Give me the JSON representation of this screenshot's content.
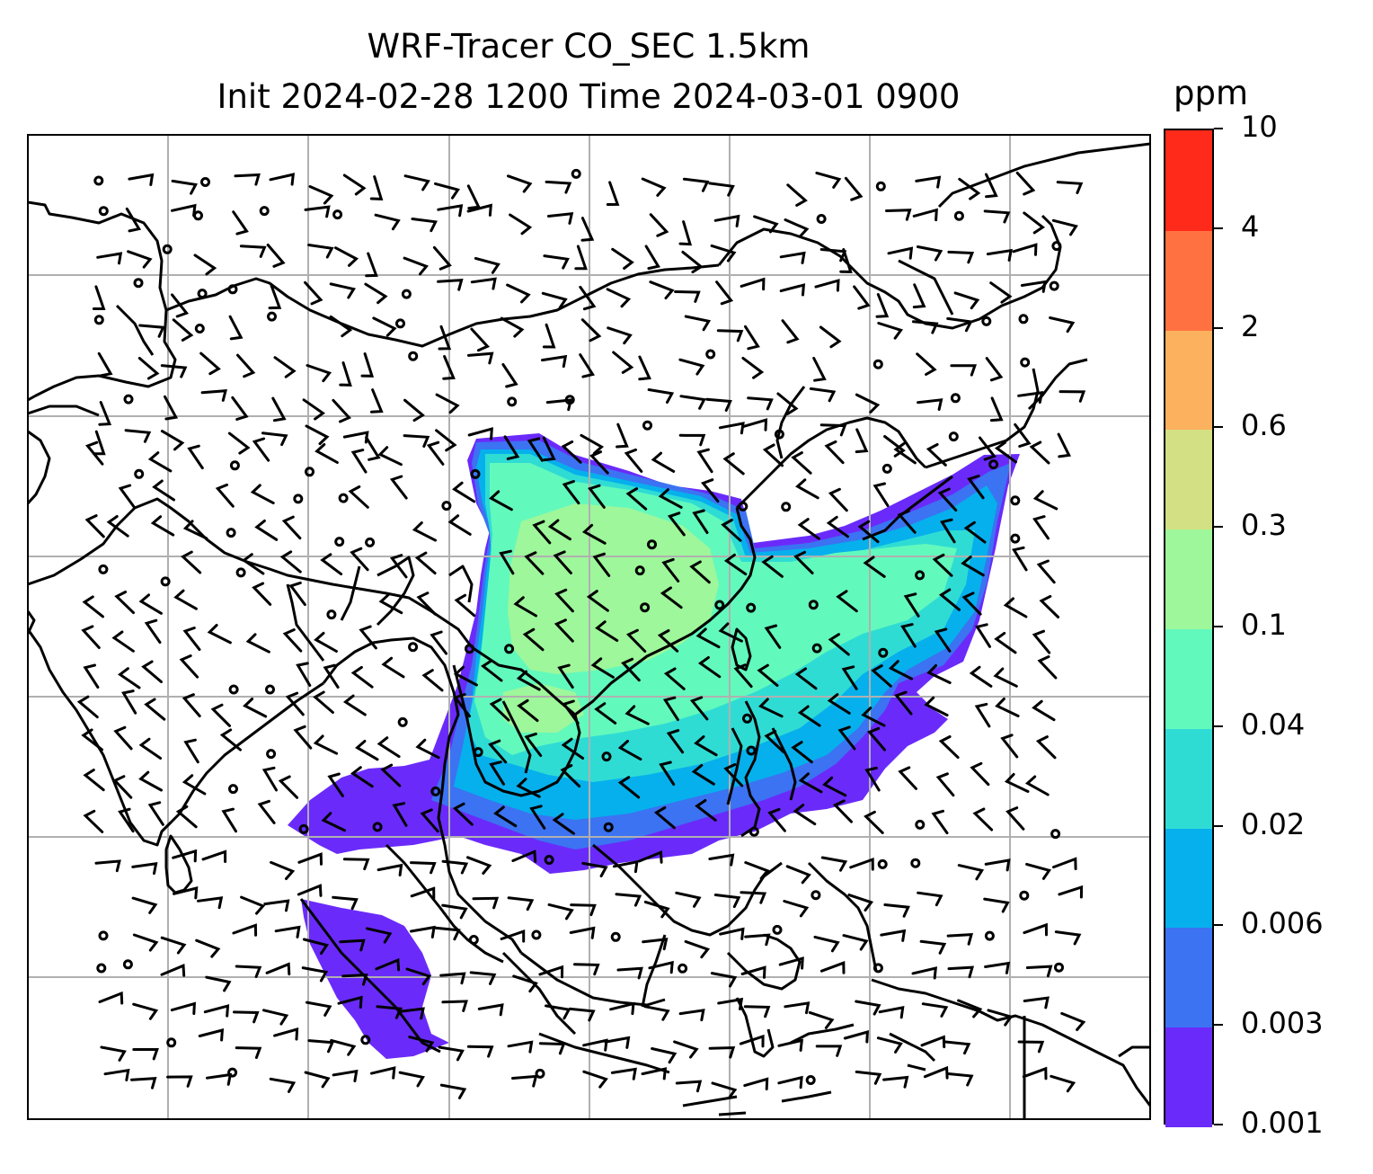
{
  "title": {
    "line1": "WRF-Tracer CO_SEC 1.5km",
    "line2": "Init 2024-02-28 1200 Time 2024-03-01 0900"
  },
  "colorbar": {
    "unit": "ppm",
    "levels": [
      "0.001",
      "0.003",
      "0.006",
      "0.02",
      "0.04",
      "0.1",
      "0.3",
      "0.6",
      "2",
      "4",
      "10"
    ],
    "colors": [
      "#6a2bfa",
      "#3b73f2",
      "#06b0ec",
      "#2fdcd4",
      "#62f9bc",
      "#9ef79a",
      "#d3e083",
      "#fbb15e",
      "#ff7140",
      "#ff2a1a"
    ]
  },
  "map": {
    "grid": "on",
    "coastline_color": "#000000",
    "gridline_color": "#b0b0b0"
  }
}
